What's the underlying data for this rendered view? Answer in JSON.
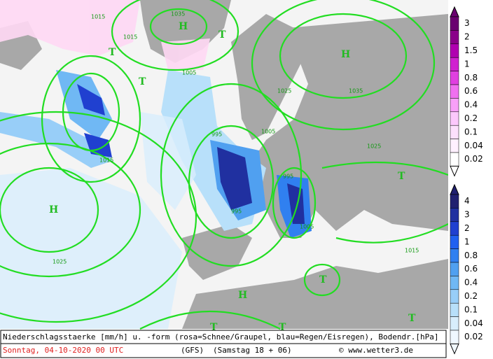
{
  "footer": {
    "line1": "Niederschlagsstaerke [mm/h] u. -form (rosa=Schnee/Graupel, blau=Regen/Eisregen), Bodendr.[hPa]",
    "date": "Sonntag, 04-10-2020  00 UTC",
    "model": "(GFS)",
    "run": "(Samstag 18 + 06)",
    "credit": "© www.wetter3.de"
  },
  "legend_snow": {
    "labels": [
      "3",
      "2",
      "1.5",
      "1",
      "0.8",
      "0.6",
      "0.4",
      "0.2",
      "0.1",
      "0.04",
      "0.02"
    ],
    "colors": [
      "#6a0070",
      "#8a008a",
      "#b000b0",
      "#d020d0",
      "#e040e0",
      "#f070f0",
      "#f8a0f8",
      "#fcc8fc",
      "#fde0fd",
      "#fff0ff",
      "#ffffff"
    ]
  },
  "legend_rain": {
    "labels": [
      "4",
      "3",
      "2",
      "1",
      "0.8",
      "0.6",
      "0.4",
      "0.2",
      "0.1",
      "0.04",
      "0.02"
    ],
    "colors": [
      "#202070",
      "#2030a0",
      "#2040d0",
      "#2060f0",
      "#3080f0",
      "#50a0f0",
      "#70b8f4",
      "#98cef8",
      "#b8e0fa",
      "#d8eefc",
      "#f0f8ff"
    ]
  },
  "map_labels": {
    "highs": [
      "H",
      "H",
      "H",
      "H"
    ],
    "lows": [
      "T",
      "T",
      "T",
      "T",
      "T",
      "T",
      "T",
      "T"
    ],
    "isobars": [
      "1035",
      "1015",
      "1015",
      "1005",
      "1025",
      "1035",
      "1005",
      "995",
      "995",
      "1025",
      "1015",
      "1005",
      "1015",
      "1025",
      "995"
    ]
  }
}
